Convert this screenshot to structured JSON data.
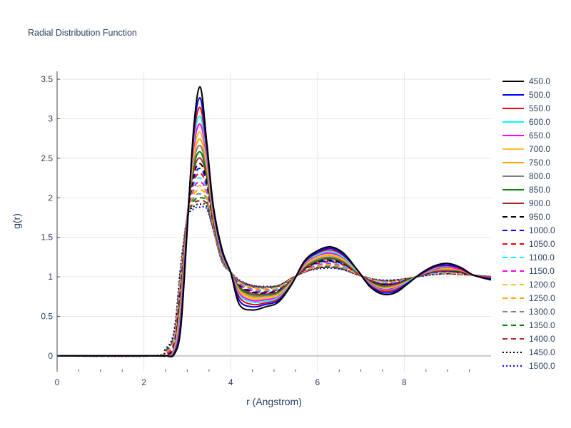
{
  "chart_data": {
    "type": "line",
    "title": "Radial Distribution Function",
    "xlabel": "r (Angstrom)",
    "ylabel": "g(r)",
    "xlim": [
      0,
      10
    ],
    "ylim": [
      -0.2,
      3.6
    ],
    "xticks": [
      "0",
      "2",
      "4",
      "6",
      "8"
    ],
    "yticks": [
      "0",
      "0.5",
      "1",
      "1.5",
      "2",
      "2.5",
      "3",
      "3.5"
    ],
    "grid": true,
    "legend": "right",
    "x": [
      0.0,
      2.2,
      2.5,
      2.7,
      2.85,
      3.0,
      3.15,
      3.3,
      3.45,
      3.6,
      3.8,
      4.0,
      4.2,
      4.5,
      4.8,
      5.1,
      5.4,
      5.7,
      6.0,
      6.3,
      6.6,
      6.9,
      7.2,
      7.5,
      7.8,
      8.1,
      8.4,
      8.7,
      9.0,
      9.3,
      9.6,
      10.0
    ],
    "series": [
      {
        "name": "450.0",
        "color": "#000000",
        "dash": "solid",
        "values": [
          0,
          0,
          0.0,
          0.02,
          0.35,
          1.6,
          2.9,
          3.4,
          2.7,
          1.9,
          1.35,
          1.05,
          0.65,
          0.58,
          0.62,
          0.68,
          0.9,
          1.2,
          1.33,
          1.38,
          1.3,
          1.1,
          0.88,
          0.78,
          0.8,
          0.92,
          1.05,
          1.14,
          1.17,
          1.12,
          1.02,
          0.96
        ]
      },
      {
        "name": "500.0",
        "color": "#0000ff",
        "dash": "solid",
        "values": [
          0,
          0,
          0.0,
          0.03,
          0.4,
          1.65,
          2.85,
          3.26,
          2.65,
          1.88,
          1.33,
          1.06,
          0.7,
          0.62,
          0.65,
          0.7,
          0.9,
          1.19,
          1.31,
          1.36,
          1.28,
          1.1,
          0.89,
          0.8,
          0.82,
          0.93,
          1.04,
          1.13,
          1.15,
          1.11,
          1.02,
          0.97
        ]
      },
      {
        "name": "550.0",
        "color": "#ff0000",
        "dash": "solid",
        "values": [
          0,
          0,
          0.0,
          0.04,
          0.45,
          1.68,
          2.78,
          3.14,
          2.6,
          1.86,
          1.32,
          1.06,
          0.74,
          0.65,
          0.67,
          0.72,
          0.91,
          1.18,
          1.3,
          1.34,
          1.27,
          1.1,
          0.9,
          0.82,
          0.84,
          0.93,
          1.04,
          1.12,
          1.14,
          1.1,
          1.02,
          0.98
        ]
      },
      {
        "name": "600.0",
        "color": "#00ffff",
        "dash": "solid",
        "values": [
          0,
          0,
          0.0,
          0.05,
          0.5,
          1.7,
          2.72,
          3.03,
          2.55,
          1.84,
          1.31,
          1.06,
          0.77,
          0.68,
          0.69,
          0.74,
          0.92,
          1.17,
          1.28,
          1.32,
          1.25,
          1.09,
          0.91,
          0.83,
          0.85,
          0.94,
          1.04,
          1.11,
          1.13,
          1.1,
          1.02,
          0.98
        ]
      },
      {
        "name": "650.0",
        "color": "#ff00ff",
        "dash": "solid",
        "values": [
          0,
          0,
          0.0,
          0.06,
          0.55,
          1.72,
          2.65,
          2.93,
          2.5,
          1.82,
          1.3,
          1.06,
          0.79,
          0.7,
          0.71,
          0.75,
          0.92,
          1.16,
          1.27,
          1.3,
          1.24,
          1.09,
          0.92,
          0.84,
          0.86,
          0.94,
          1.04,
          1.1,
          1.12,
          1.09,
          1.02,
          0.99
        ]
      },
      {
        "name": "700.0",
        "color": "#ffbb33",
        "dash": "solid",
        "values": [
          0,
          0,
          0.0,
          0.07,
          0.6,
          1.74,
          2.58,
          2.83,
          2.45,
          1.8,
          1.29,
          1.06,
          0.81,
          0.72,
          0.73,
          0.77,
          0.93,
          1.15,
          1.25,
          1.28,
          1.22,
          1.08,
          0.92,
          0.85,
          0.87,
          0.95,
          1.04,
          1.1,
          1.11,
          1.09,
          1.02,
          0.99
        ]
      },
      {
        "name": "750.0",
        "color": "#ffa500",
        "dash": "solid",
        "values": [
          0,
          0,
          0.0,
          0.08,
          0.65,
          1.75,
          2.52,
          2.74,
          2.4,
          1.78,
          1.28,
          1.06,
          0.83,
          0.74,
          0.74,
          0.78,
          0.93,
          1.14,
          1.24,
          1.27,
          1.21,
          1.08,
          0.93,
          0.86,
          0.88,
          0.95,
          1.03,
          1.09,
          1.1,
          1.08,
          1.02,
          0.99
        ]
      },
      {
        "name": "800.0",
        "color": "#808080",
        "dash": "solid",
        "values": [
          0,
          0,
          0.0,
          0.09,
          0.7,
          1.76,
          2.46,
          2.66,
          2.35,
          1.76,
          1.27,
          1.06,
          0.84,
          0.76,
          0.76,
          0.79,
          0.94,
          1.13,
          1.22,
          1.25,
          1.2,
          1.07,
          0.93,
          0.87,
          0.89,
          0.95,
          1.03,
          1.08,
          1.09,
          1.08,
          1.02,
          0.99
        ]
      },
      {
        "name": "850.0",
        "color": "#008000",
        "dash": "solid",
        "values": [
          0,
          0,
          0.0,
          0.1,
          0.74,
          1.77,
          2.4,
          2.58,
          2.3,
          1.74,
          1.26,
          1.06,
          0.86,
          0.77,
          0.77,
          0.8,
          0.94,
          1.12,
          1.21,
          1.24,
          1.19,
          1.07,
          0.94,
          0.88,
          0.89,
          0.96,
          1.03,
          1.08,
          1.09,
          1.07,
          1.02,
          1.0
        ]
      },
      {
        "name": "900.0",
        "color": "#a52a2a",
        "dash": "solid",
        "values": [
          0,
          0,
          0.0,
          0.11,
          0.78,
          1.78,
          2.35,
          2.5,
          2.26,
          1.72,
          1.25,
          1.06,
          0.87,
          0.79,
          0.78,
          0.81,
          0.95,
          1.11,
          1.2,
          1.23,
          1.18,
          1.06,
          0.94,
          0.89,
          0.9,
          0.96,
          1.03,
          1.07,
          1.08,
          1.07,
          1.02,
          1.0
        ]
      },
      {
        "name": "950.0",
        "color": "#000000",
        "dash": "dash",
        "values": [
          0,
          0,
          0.01,
          0.13,
          0.82,
          1.78,
          2.3,
          2.43,
          2.22,
          1.71,
          1.25,
          1.06,
          0.88,
          0.8,
          0.79,
          0.82,
          0.95,
          1.1,
          1.19,
          1.21,
          1.17,
          1.06,
          0.95,
          0.9,
          0.91,
          0.96,
          1.03,
          1.07,
          1.08,
          1.06,
          1.02,
          1.0
        ]
      },
      {
        "name": "1000.0",
        "color": "#0000ff",
        "dash": "dash",
        "values": [
          0,
          0,
          0.01,
          0.14,
          0.86,
          1.78,
          2.25,
          2.37,
          2.18,
          1.7,
          1.24,
          1.06,
          0.89,
          0.81,
          0.8,
          0.83,
          0.95,
          1.1,
          1.18,
          1.2,
          1.16,
          1.06,
          0.95,
          0.91,
          0.91,
          0.97,
          1.02,
          1.06,
          1.07,
          1.06,
          1.02,
          1.0
        ]
      },
      {
        "name": "1050.0",
        "color": "#ff0000",
        "dash": "dash",
        "values": [
          0,
          0,
          0.02,
          0.16,
          0.9,
          1.78,
          2.2,
          2.31,
          2.14,
          1.68,
          1.24,
          1.06,
          0.9,
          0.82,
          0.81,
          0.84,
          0.96,
          1.09,
          1.17,
          1.19,
          1.15,
          1.05,
          0.96,
          0.91,
          0.92,
          0.97,
          1.02,
          1.06,
          1.07,
          1.05,
          1.02,
          1.0
        ]
      },
      {
        "name": "1100.0",
        "color": "#00ffff",
        "dash": "dash",
        "values": [
          0,
          0,
          0.02,
          0.17,
          0.93,
          1.78,
          2.16,
          2.25,
          2.1,
          1.67,
          1.23,
          1.06,
          0.91,
          0.83,
          0.82,
          0.85,
          0.96,
          1.09,
          1.16,
          1.18,
          1.14,
          1.05,
          0.96,
          0.92,
          0.92,
          0.97,
          1.02,
          1.05,
          1.06,
          1.05,
          1.02,
          1.0
        ]
      },
      {
        "name": "1150.0",
        "color": "#ff00ff",
        "dash": "dash",
        "values": [
          0,
          0,
          0.03,
          0.19,
          0.96,
          1.77,
          2.12,
          2.2,
          2.07,
          1.66,
          1.23,
          1.06,
          0.92,
          0.84,
          0.83,
          0.85,
          0.96,
          1.08,
          1.15,
          1.17,
          1.13,
          1.05,
          0.96,
          0.92,
          0.93,
          0.97,
          1.02,
          1.05,
          1.06,
          1.05,
          1.02,
          1.0
        ]
      },
      {
        "name": "1200.0",
        "color": "#ffbb33",
        "dash": "dash",
        "values": [
          0,
          0,
          0.03,
          0.2,
          0.99,
          1.77,
          2.08,
          2.15,
          2.04,
          1.65,
          1.22,
          1.06,
          0.92,
          0.85,
          0.84,
          0.86,
          0.97,
          1.08,
          1.14,
          1.16,
          1.12,
          1.04,
          0.97,
          0.93,
          0.93,
          0.97,
          1.02,
          1.05,
          1.06,
          1.04,
          1.02,
          1.0
        ]
      },
      {
        "name": "1250.0",
        "color": "#ffa500",
        "dash": "dash",
        "values": [
          0,
          0,
          0.04,
          0.22,
          1.02,
          1.77,
          2.04,
          2.1,
          2.01,
          1.64,
          1.22,
          1.06,
          0.93,
          0.86,
          0.85,
          0.87,
          0.97,
          1.07,
          1.13,
          1.15,
          1.12,
          1.04,
          0.97,
          0.93,
          0.94,
          0.98,
          1.02,
          1.04,
          1.05,
          1.04,
          1.02,
          1.0
        ]
      },
      {
        "name": "1300.0",
        "color": "#808080",
        "dash": "dash",
        "values": [
          0,
          0,
          0.05,
          0.24,
          1.05,
          1.76,
          2.0,
          2.05,
          1.98,
          1.63,
          1.21,
          1.06,
          0.94,
          0.87,
          0.85,
          0.87,
          0.97,
          1.07,
          1.13,
          1.14,
          1.11,
          1.04,
          0.97,
          0.94,
          0.94,
          0.98,
          1.02,
          1.04,
          1.05,
          1.04,
          1.02,
          1.0
        ]
      },
      {
        "name": "1350.0",
        "color": "#008000",
        "dash": "dash",
        "values": [
          0,
          0,
          0.06,
          0.26,
          1.08,
          1.76,
          1.96,
          2.0,
          1.95,
          1.62,
          1.21,
          1.06,
          0.94,
          0.87,
          0.86,
          0.88,
          0.97,
          1.07,
          1.12,
          1.13,
          1.1,
          1.04,
          0.98,
          0.94,
          0.95,
          0.98,
          1.02,
          1.04,
          1.05,
          1.04,
          1.02,
          1.0
        ]
      },
      {
        "name": "1400.0",
        "color": "#a52a2a",
        "dash": "dash",
        "values": [
          0,
          0,
          0.07,
          0.28,
          1.1,
          1.75,
          1.93,
          1.96,
          1.92,
          1.61,
          1.2,
          1.06,
          0.95,
          0.88,
          0.87,
          0.88,
          0.98,
          1.06,
          1.11,
          1.12,
          1.1,
          1.03,
          0.98,
          0.95,
          0.95,
          0.98,
          1.02,
          1.04,
          1.04,
          1.03,
          1.02,
          1.0
        ]
      },
      {
        "name": "1450.0",
        "color": "#000000",
        "dash": "dot",
        "values": [
          0,
          0,
          0.08,
          0.3,
          1.13,
          1.75,
          1.89,
          1.92,
          1.89,
          1.6,
          1.2,
          1.06,
          0.95,
          0.89,
          0.87,
          0.89,
          0.98,
          1.06,
          1.11,
          1.12,
          1.09,
          1.03,
          0.98,
          0.95,
          0.96,
          0.98,
          1.01,
          1.03,
          1.04,
          1.03,
          1.02,
          1.0
        ]
      },
      {
        "name": "1500.0",
        "color": "#0000ff",
        "dash": "dot",
        "values": [
          0,
          0,
          0.09,
          0.33,
          1.15,
          1.74,
          1.86,
          1.88,
          1.86,
          1.59,
          1.19,
          1.06,
          0.96,
          0.89,
          0.88,
          0.89,
          0.98,
          1.06,
          1.1,
          1.11,
          1.09,
          1.03,
          0.98,
          0.96,
          0.96,
          0.98,
          1.01,
          1.03,
          1.04,
          1.03,
          1.02,
          1.0
        ]
      }
    ]
  }
}
